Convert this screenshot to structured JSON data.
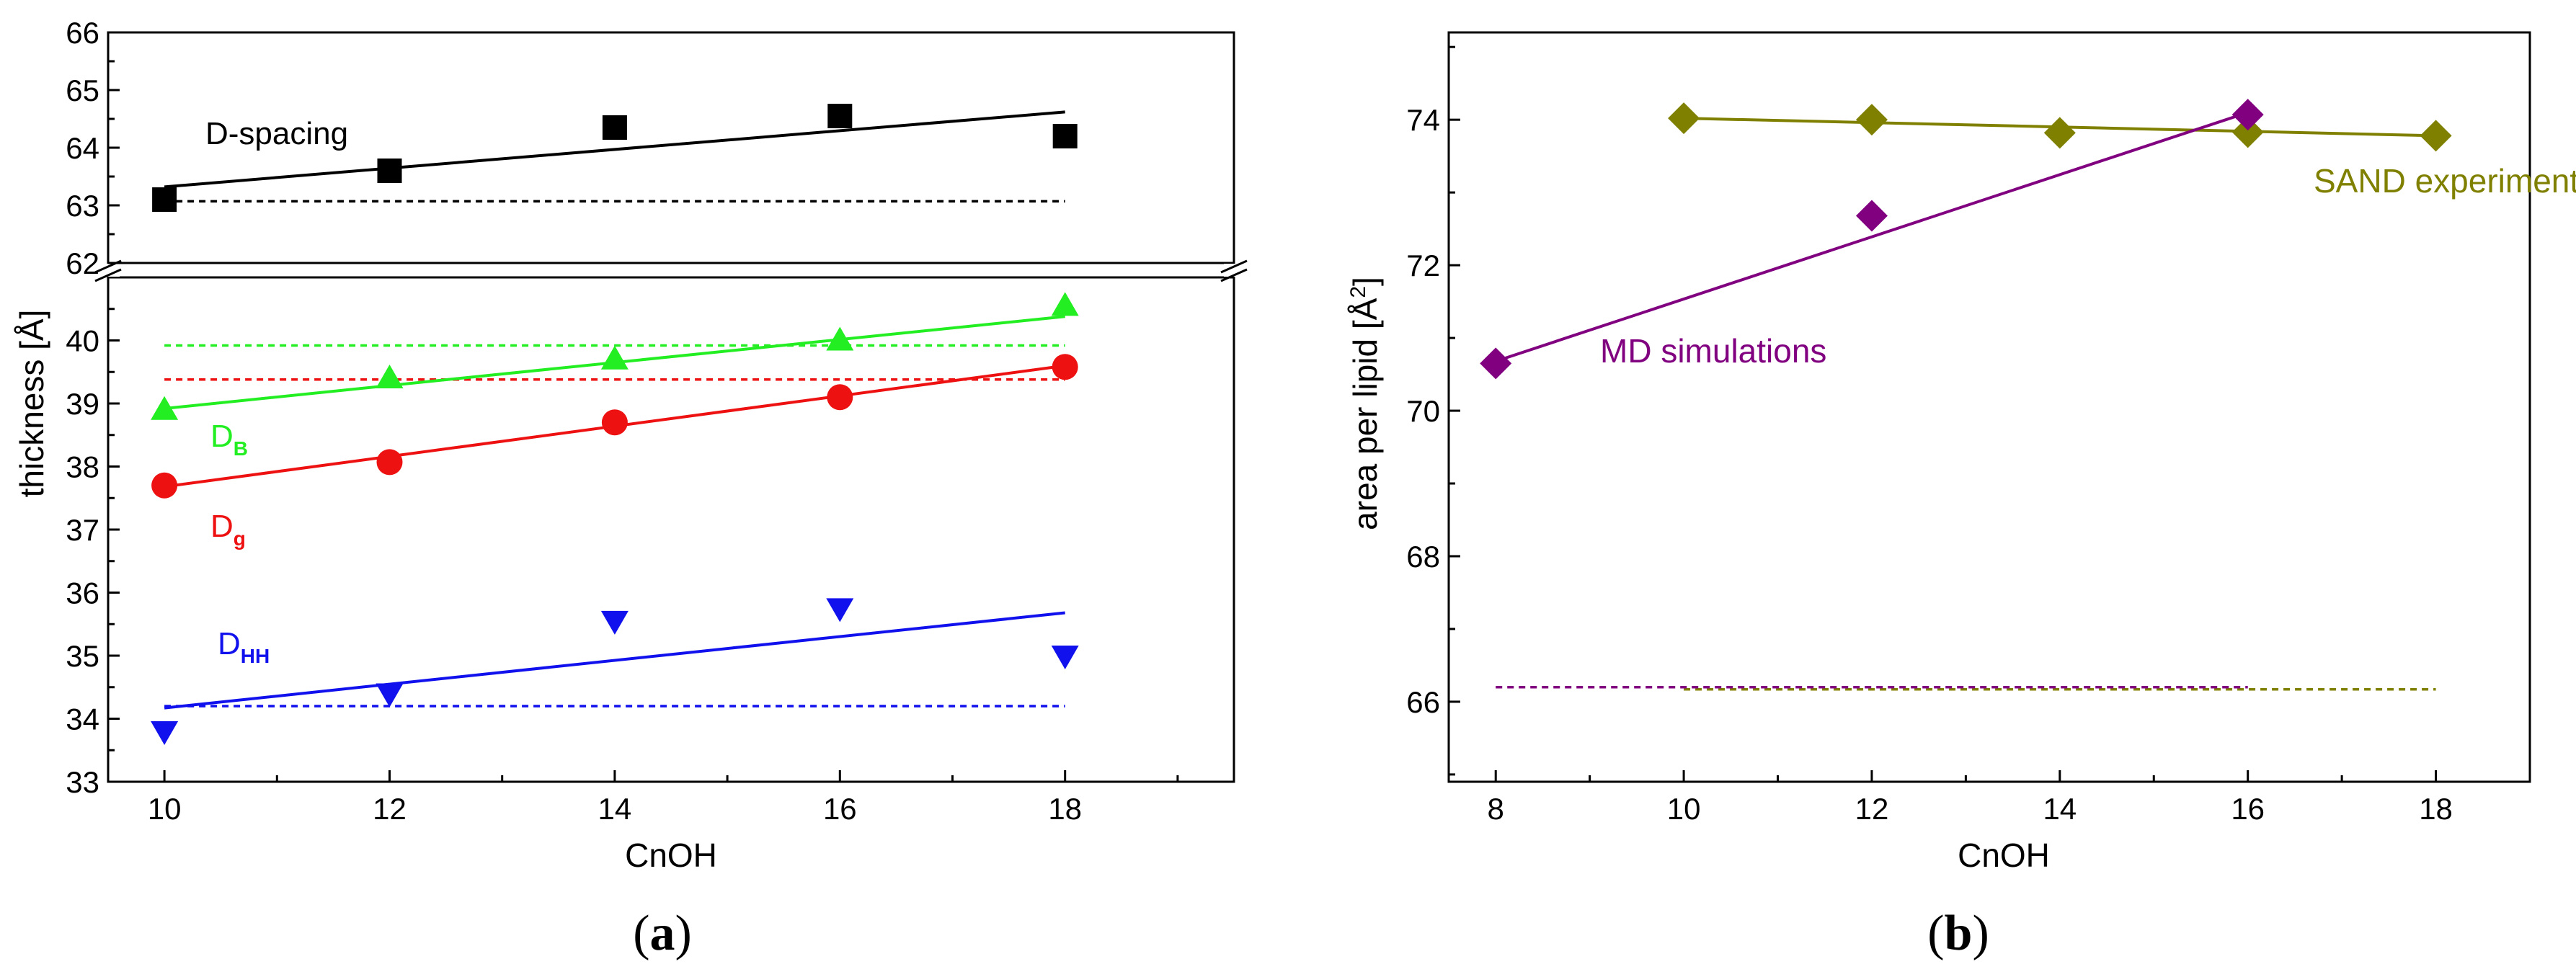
{
  "chart_data": [
    {
      "panel_label": "(a)",
      "panel_letter": "a",
      "type": "scatter",
      "xlabel": "CnOH",
      "ylabel": "thickness  [Å]",
      "xlim": [
        9.5,
        19.5
      ],
      "xticks": [
        "10",
        "12",
        "14",
        "16",
        "18"
      ],
      "upper_segment": {
        "ylim": [
          62,
          66
        ],
        "yticks": [
          "62",
          "63",
          "64",
          "65",
          "66"
        ]
      },
      "lower_segment": {
        "ylim": [
          33,
          41
        ],
        "yticks": [
          "33",
          "34",
          "35",
          "36",
          "37",
          "38",
          "39",
          "40"
        ]
      },
      "axis_break": true,
      "series": [
        {
          "name": "D-spacing",
          "label_main": "D-spacing",
          "label_sub": "",
          "segment": "upper",
          "color": "#000000",
          "marker": "square",
          "x": [
            10,
            12,
            14,
            16,
            18
          ],
          "values": [
            63.1,
            63.6,
            64.35,
            64.55,
            64.2
          ],
          "fit": [
            [
              10,
              63.32
            ],
            [
              18,
              64.62
            ]
          ],
          "reference": 63.07
        },
        {
          "name": "DB",
          "label_main": "D",
          "label_sub": "B",
          "segment": "lower",
          "color": "#22ee22",
          "marker": "triangle-up",
          "x": [
            10,
            12,
            14,
            16,
            18
          ],
          "values": [
            38.9,
            39.4,
            39.7,
            40.0,
            40.55
          ],
          "fit": [
            [
              10,
              38.92
            ],
            [
              18,
              40.38
            ]
          ],
          "reference": 39.92
        },
        {
          "name": "Dg",
          "label_main": "D",
          "label_sub": "g",
          "segment": "lower",
          "color": "#ee1111",
          "marker": "circle",
          "x": [
            10,
            12,
            14,
            16,
            18
          ],
          "values": [
            37.7,
            38.07,
            38.7,
            39.1,
            39.58
          ],
          "fit": [
            [
              10,
              37.68
            ],
            [
              18,
              39.6
            ]
          ],
          "reference": 39.38
        },
        {
          "name": "DHH",
          "label_main": "D",
          "label_sub": "HH",
          "segment": "lower",
          "color": "#1111ee",
          "marker": "triangle-down",
          "x": [
            10,
            12,
            14,
            16,
            18
          ],
          "values": [
            33.8,
            34.4,
            35.55,
            35.75,
            35.0
          ],
          "fit": [
            [
              10,
              34.17
            ],
            [
              18,
              35.68
            ]
          ],
          "reference": 34.2
        }
      ]
    },
    {
      "panel_label": "(b)",
      "panel_letter": "b",
      "type": "scatter",
      "xlabel": "CnOH",
      "ylabel": "area per lipid  [Å²]",
      "ylabel_main": "area per lipid  [Å",
      "ylabel_sup": "2",
      "ylabel_end": "]",
      "xlim": [
        7.5,
        19.0
      ],
      "ylim": [
        64.9,
        75.2
      ],
      "xticks": [
        "8",
        "10",
        "12",
        "14",
        "16",
        "18"
      ],
      "yticks": [
        "66",
        "68",
        "70",
        "72",
        "74"
      ],
      "series": [
        {
          "name": "SAND experiment",
          "color": "#808000",
          "marker": "diamond",
          "x": [
            10,
            12,
            14,
            16,
            18
          ],
          "values": [
            74.02,
            74.0,
            73.82,
            73.83,
            73.78
          ],
          "fit": [
            [
              10,
              74.02
            ],
            [
              18,
              73.78
            ]
          ],
          "reference": [
            [
              10,
              66.17
            ],
            [
              18,
              66.17
            ]
          ]
        },
        {
          "name": "MD simulations",
          "color": "#800080",
          "marker": "diamond",
          "x": [
            8,
            12,
            16
          ],
          "values": [
            70.65,
            72.68,
            74.07
          ],
          "fit": [
            [
              8,
              70.68
            ],
            [
              16,
              74.1
            ]
          ],
          "reference": [
            [
              8,
              66.2
            ],
            [
              16,
              66.2
            ]
          ]
        }
      ]
    }
  ]
}
